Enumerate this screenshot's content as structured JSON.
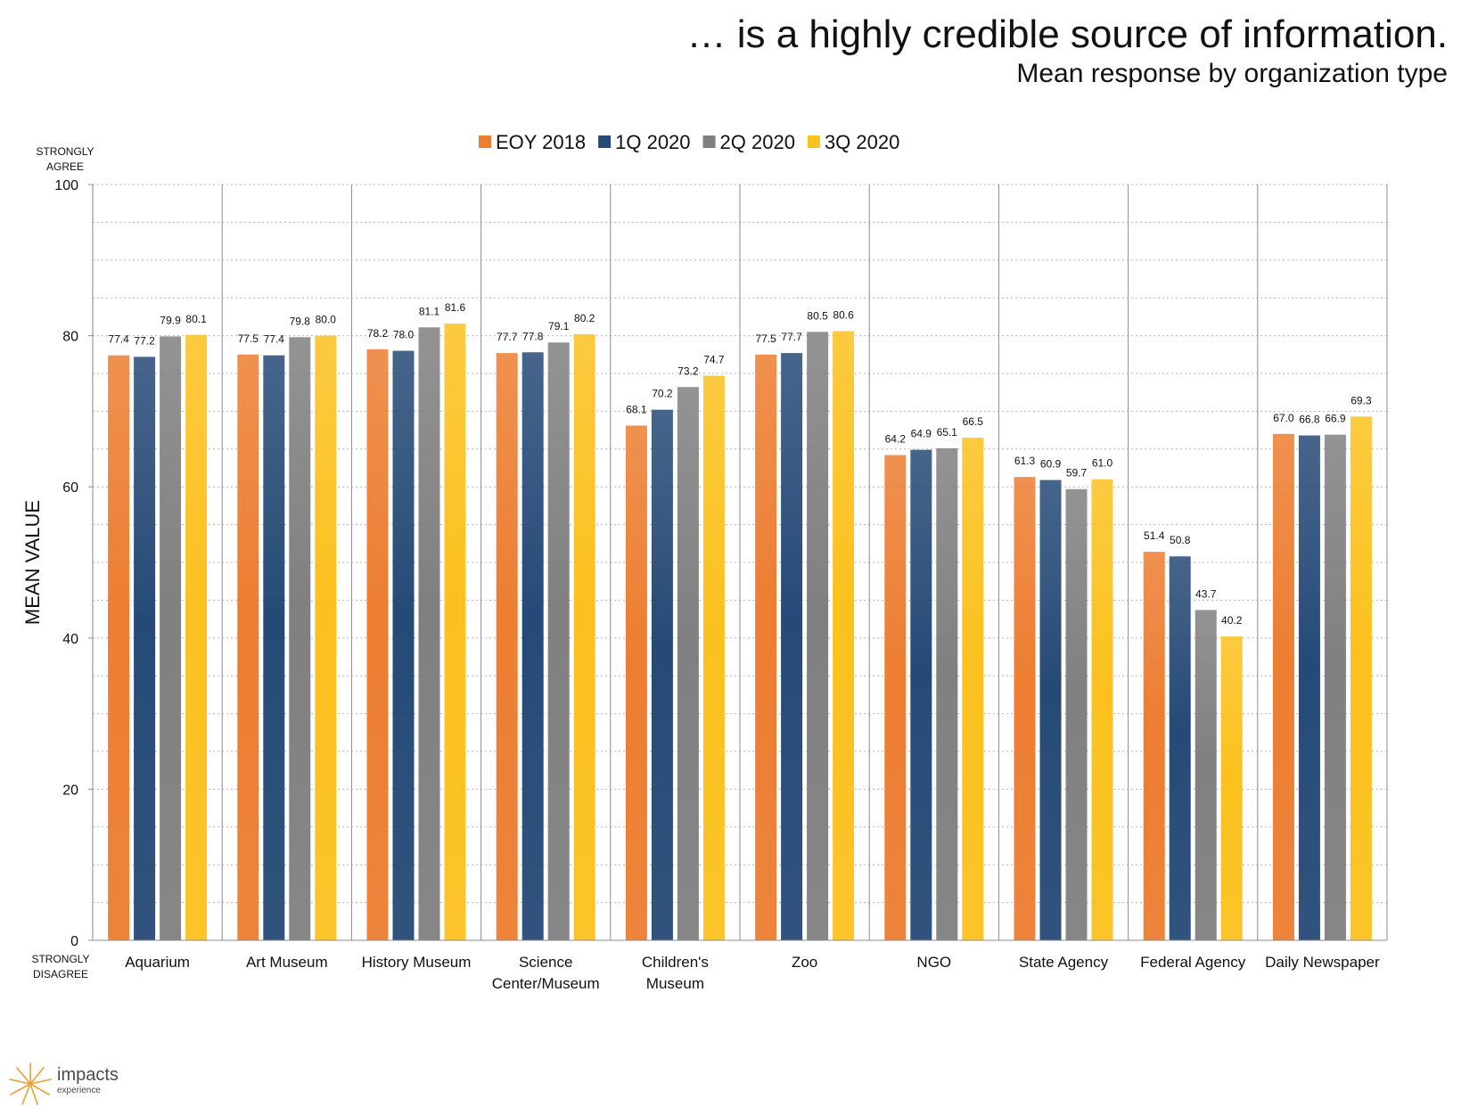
{
  "title": "… is a highly credible source of information.",
  "subtitle": "Mean response by organization type",
  "logo": {
    "word": "impacts",
    "sub": "experience"
  },
  "colors": {
    "EOY 2018": "#ED7D31",
    "1Q 2020": "#264A77",
    "2Q 2020": "#808080",
    "3Q 2020": "#FCC11E"
  },
  "chart_data": {
    "type": "bar",
    "ylabel": "MEAN VALUE",
    "ylim": [
      0,
      100
    ],
    "yticks": [
      0,
      20,
      40,
      60,
      80,
      100
    ],
    "y_top_label": [
      "STRONGLY",
      "AGREE"
    ],
    "y_bottom_label": [
      "STRONGLY",
      "DISAGREE"
    ],
    "grid": true,
    "legend_position": "top",
    "categories": [
      [
        "Aquarium"
      ],
      [
        "Art Museum"
      ],
      [
        "History Museum"
      ],
      [
        "Science",
        "Center/Museum"
      ],
      [
        "Children's",
        "Museum"
      ],
      [
        "Zoo"
      ],
      [
        "NGO"
      ],
      [
        "State Agency"
      ],
      [
        "Federal Agency"
      ],
      [
        "Daily Newspaper"
      ]
    ],
    "series": [
      {
        "name": "EOY 2018",
        "values": [
          77.4,
          77.5,
          78.2,
          77.7,
          68.1,
          77.5,
          64.2,
          61.3,
          51.4,
          67.0
        ]
      },
      {
        "name": "1Q 2020",
        "values": [
          77.2,
          77.4,
          78.0,
          77.8,
          70.2,
          77.7,
          64.9,
          60.9,
          50.8,
          66.8
        ]
      },
      {
        "name": "2Q 2020",
        "values": [
          79.9,
          79.8,
          81.1,
          79.1,
          73.2,
          80.5,
          65.1,
          59.7,
          43.7,
          66.9
        ]
      },
      {
        "name": "3Q 2020",
        "values": [
          80.1,
          80.0,
          81.6,
          80.2,
          74.7,
          80.6,
          66.5,
          61.0,
          40.2,
          69.3
        ]
      }
    ]
  }
}
